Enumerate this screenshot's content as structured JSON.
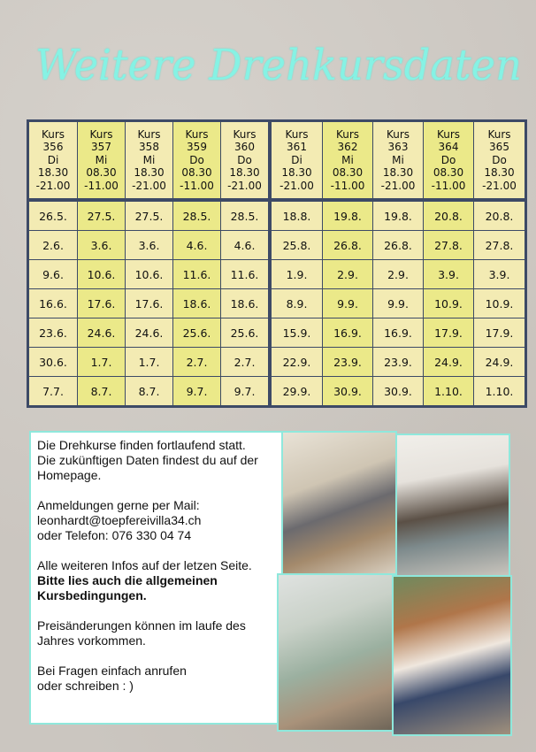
{
  "title": "Weitere Drehkursdaten",
  "courses": [
    {
      "kurs": "Kurs",
      "nr": "356",
      "day": "Di",
      "start": "18.30",
      "end": "-21.00",
      "dates": [
        "26.5.",
        "2.6.",
        "9.6.",
        "16.6.",
        "23.6.",
        "30.6.",
        "7.7."
      ]
    },
    {
      "kurs": "Kurs",
      "nr": "357",
      "day": "Mi",
      "start": "08.30",
      "end": "-11.00",
      "dates": [
        "27.5.",
        "3.6.",
        "10.6.",
        "17.6.",
        "24.6.",
        "1.7.",
        "8.7."
      ]
    },
    {
      "kurs": "Kurs",
      "nr": "358",
      "day": "Mi",
      "start": "18.30",
      "end": "-21.00",
      "dates": [
        "27.5.",
        "3.6.",
        "10.6.",
        "17.6.",
        "24.6.",
        "1.7.",
        "8.7."
      ]
    },
    {
      "kurs": "Kurs",
      "nr": "359",
      "day": "Do",
      "start": "08.30",
      "end": "-11.00",
      "dates": [
        "28.5.",
        "4.6.",
        "11.6.",
        "18.6.",
        "25.6.",
        "2.7.",
        "9.7."
      ]
    },
    {
      "kurs": "Kurs",
      "nr": "360",
      "day": "Do",
      "start": "18.30",
      "end": "-21.00",
      "dates": [
        "28.5.",
        "4.6.",
        "11.6.",
        "18.6.",
        "25.6.",
        "2.7.",
        "9.7."
      ]
    },
    {
      "kurs": "Kurs",
      "nr": "361",
      "day": "Di",
      "start": "18.30",
      "end": "-21.00",
      "dates": [
        "18.8.",
        "25.8.",
        "1.9.",
        "8.9.",
        "15.9.",
        "22.9.",
        "29.9."
      ]
    },
    {
      "kurs": "Kurs",
      "nr": "362",
      "day": "Mi",
      "start": "08.30",
      "end": "-11.00",
      "dates": [
        "19.8.",
        "26.8.",
        "2.9.",
        "9.9.",
        "16.9.",
        "23.9.",
        "30.9."
      ]
    },
    {
      "kurs": "Kurs",
      "nr": "363",
      "day": "Mi",
      "start": "18.30",
      "end": "-21.00",
      "dates": [
        "19.8.",
        "26.8.",
        "2.9.",
        "9.9.",
        "16.9.",
        "23.9.",
        "30.9."
      ]
    },
    {
      "kurs": "Kurs",
      "nr": "364",
      "day": "Do",
      "start": "08.30",
      "end": "-11.00",
      "dates": [
        "20.8.",
        "27.8.",
        "3.9.",
        "10.9.",
        "17.9.",
        "24.9.",
        "1.10."
      ]
    },
    {
      "kurs": "Kurs",
      "nr": "365",
      "day": "Do",
      "start": "18.30",
      "end": "-21.00",
      "dates": [
        "20.8.",
        "27.8.",
        "3.9.",
        "10.9.",
        "17.9.",
        "24.9.",
        "1.10."
      ]
    }
  ],
  "info": {
    "p1": [
      "Die Drehkurse finden fortlaufend statt.",
      "Die zukünftigen Daten findest du auf der",
      "Homepage."
    ],
    "p2": [
      "Anmeldungen gerne per Mail:",
      "leonhardt@toepfereivilla34.ch",
      "oder Telefon: 076 330 04 74"
    ],
    "p3": "Alle weiteren Infos auf der letzen Seite.",
    "p3_bold": [
      "Bitte lies auch die allgemeinen",
      "Kursbedingungen."
    ],
    "p4": [
      "Preisänderungen können im laufe des",
      "Jahres vorkommen."
    ],
    "p5": [
      "Bei Fragen einfach anrufen",
      "oder schreiben : )"
    ]
  },
  "colors": {
    "accent": "#86f2e4",
    "cell": "#f3ebb3",
    "cell_highlight": "#ebe989",
    "border": "#3d4a66"
  }
}
